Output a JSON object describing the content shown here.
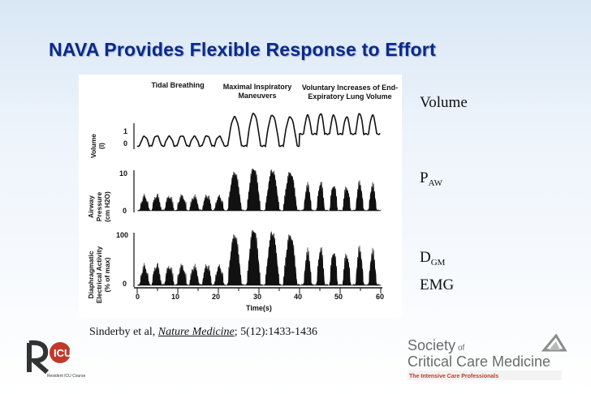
{
  "title": "NAVA Provides Flexible Response to Effort",
  "figure": {
    "headers": [
      "Tidal Breathing",
      "Maximal Inspiratory Maneuvers",
      "Voluntary Increases of End-Expiratory Lung Volume"
    ],
    "panels": [
      {
        "ylabel_line1": "Volume",
        "ylabel_line2": "(l)",
        "tick_top": "1",
        "tick_bottom": "0"
      },
      {
        "ylabel_line1": "Airway",
        "ylabel_line2": "Pressure",
        "ylabel_line3": "(cm H2O)",
        "tick_top": "10",
        "tick_bottom": "0"
      },
      {
        "ylabel_line1": "Diaphragmatic",
        "ylabel_line2": "Electrical Activity",
        "ylabel_line3": "(% of max)",
        "tick_top": "100",
        "tick_bottom": "0"
      }
    ],
    "x_ticks": [
      "0",
      "10",
      "20",
      "30",
      "40",
      "50",
      "60"
    ],
    "x_label": "Time(s)"
  },
  "labels": {
    "volume": "Volume",
    "paw_main": "P",
    "paw_sub": "AW",
    "dgm_main": "D",
    "dgm_sub": "GM",
    "emg": "EMG"
  },
  "citation": {
    "authors": "Sinderby et al, ",
    "journal": "Nature Medicine",
    "ref": "; 5(12):1433-1436"
  },
  "logo_left": {
    "text": "ICU",
    "tag": "Resident ICU Course"
  },
  "logo_right": {
    "line1": "Society",
    "of": "of",
    "line2": "Critical Care Medicine",
    "tagline": "The Intensive Care Professionals"
  },
  "colors": {
    "title": "#0a2a8a",
    "logo_red": "#c0392b",
    "sccm_grey": "#6b6b6b"
  }
}
